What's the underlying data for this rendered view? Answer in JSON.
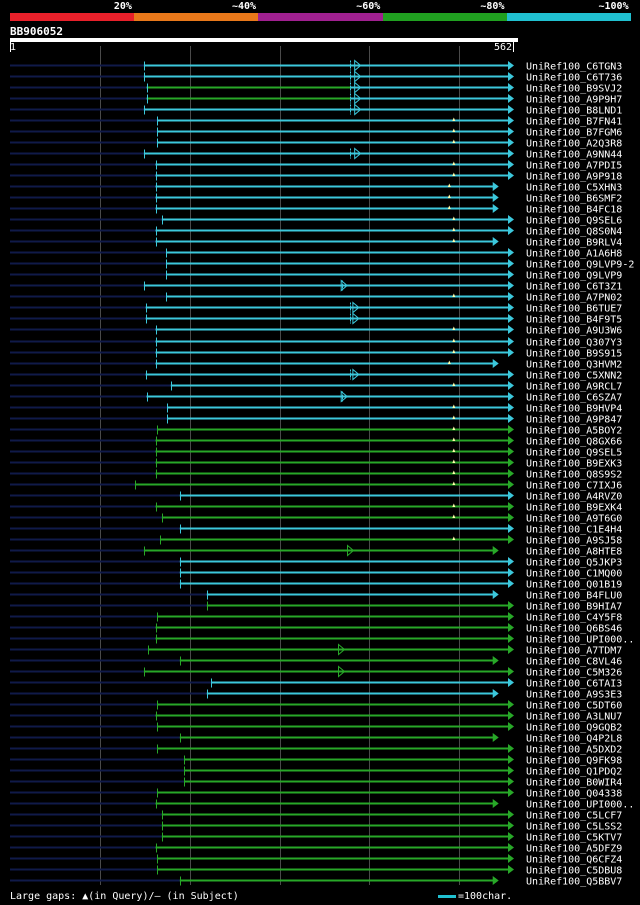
{
  "identity_legend": [
    {
      "label": "20%",
      "color": "#e8202a"
    },
    {
      "label": "~40%",
      "color": "#e8781a"
    },
    {
      "label": "~60%",
      "color": "#a02090"
    },
    {
      "label": "~80%",
      "color": "#20a020"
    },
    {
      "label": "~100%",
      "color": "#20c0d0"
    }
  ],
  "query": {
    "id": "BB906052",
    "start": "1",
    "end": "562"
  },
  "colors": {
    "cyan": "#3cc8dc",
    "green": "#28a828",
    "navy": "#101a4a",
    "grid": "#4a4a4a",
    "gap": "#ffffaa"
  },
  "hits": [
    {
      "label": "UniRef100_C6TGN3",
      "start": 150,
      "end": 562,
      "color": "cyan",
      "marks": [
        {
          "t": "b",
          "p": 380
        },
        {
          "t": "t",
          "p": 388
        }
      ]
    },
    {
      "label": "UniRef100_C6T736",
      "start": 150,
      "end": 562,
      "color": "cyan",
      "marks": [
        {
          "t": "b",
          "p": 380
        },
        {
          "t": "t",
          "p": 388
        }
      ]
    },
    {
      "label": "UniRef100_B9SVJ2",
      "start": 153,
      "end": 562,
      "color": "cyan",
      "gstart": 153,
      "gend": 380,
      "marks": [
        {
          "t": "b",
          "p": 380
        },
        {
          "t": "t",
          "p": 388
        }
      ]
    },
    {
      "label": "UniRef100_A9P9H7",
      "start": 153,
      "end": 562,
      "color": "cyan",
      "gstart": 153,
      "gend": 380,
      "marks": [
        {
          "t": "b",
          "p": 380
        },
        {
          "t": "t",
          "p": 388
        }
      ]
    },
    {
      "label": "UniRef100_B8LND1",
      "start": 150,
      "end": 562,
      "color": "cyan",
      "marks": [
        {
          "t": "b",
          "p": 380
        },
        {
          "t": "t",
          "p": 388
        }
      ]
    },
    {
      "label": "UniRef100_B7FN41",
      "start": 165,
      "end": 562,
      "color": "cyan",
      "marks": [
        {
          "t": "a",
          "p": 495
        }
      ]
    },
    {
      "label": "UniRef100_B7FGM6",
      "start": 165,
      "end": 562,
      "color": "cyan",
      "marks": [
        {
          "t": "a",
          "p": 495
        }
      ]
    },
    {
      "label": "UniRef100_A2Q3R8",
      "start": 165,
      "end": 562,
      "color": "cyan",
      "marks": [
        {
          "t": "a",
          "p": 495
        }
      ]
    },
    {
      "label": "UniRef100_A9NN44",
      "start": 150,
      "end": 562,
      "color": "cyan",
      "marks": [
        {
          "t": "b",
          "p": 380
        },
        {
          "t": "t",
          "p": 388
        }
      ]
    },
    {
      "label": "UniRef100_A7PDI5",
      "start": 163,
      "end": 562,
      "color": "cyan",
      "marks": [
        {
          "t": "a",
          "p": 495
        }
      ]
    },
    {
      "label": "UniRef100_A9P918",
      "start": 163,
      "end": 562,
      "color": "cyan",
      "marks": [
        {
          "t": "a",
          "p": 495
        }
      ]
    },
    {
      "label": "UniRef100_C5XHN3",
      "start": 163,
      "end": 545,
      "color": "cyan",
      "marks": [
        {
          "t": "a",
          "p": 490
        }
      ]
    },
    {
      "label": "UniRef100_B6SMF2",
      "start": 163,
      "end": 545,
      "color": "cyan",
      "marks": [
        {
          "t": "a",
          "p": 490
        }
      ]
    },
    {
      "label": "UniRef100_B4FC18",
      "start": 163,
      "end": 545,
      "color": "cyan",
      "marks": [
        {
          "t": "a",
          "p": 490
        }
      ]
    },
    {
      "label": "UniRef100_Q9SEL6",
      "start": 170,
      "end": 562,
      "color": "cyan",
      "marks": [
        {
          "t": "a",
          "p": 495
        }
      ]
    },
    {
      "label": "UniRef100_Q8S0N4",
      "start": 163,
      "end": 562,
      "color": "cyan",
      "marks": [
        {
          "t": "a",
          "p": 495
        }
      ]
    },
    {
      "label": "UniRef100_B9RLV4",
      "start": 163,
      "end": 545,
      "color": "cyan",
      "marks": [
        {
          "t": "a",
          "p": 495
        }
      ]
    },
    {
      "label": "UniRef100_A1A6H8",
      "start": 175,
      "end": 562,
      "color": "cyan",
      "marks": []
    },
    {
      "label": "UniRef100_Q9LVP9-2",
      "start": 175,
      "end": 562,
      "color": "cyan",
      "marks": []
    },
    {
      "label": "UniRef100_Q9LVP9",
      "start": 175,
      "end": 562,
      "color": "cyan",
      "marks": []
    },
    {
      "label": "UniRef100_C6T3Z1",
      "start": 150,
      "end": 562,
      "color": "cyan",
      "marks": [
        {
          "t": "b",
          "p": 370
        },
        {
          "t": "t",
          "p": 373
        }
      ]
    },
    {
      "label": "UniRef100_A7PN02",
      "start": 175,
      "end": 562,
      "color": "cyan",
      "marks": [
        {
          "t": "a",
          "p": 495
        }
      ]
    },
    {
      "label": "UniRef100_B6TUE7",
      "start": 152,
      "end": 562,
      "color": "cyan",
      "marks": [
        {
          "t": "b",
          "p": 380
        },
        {
          "t": "t",
          "p": 386
        }
      ]
    },
    {
      "label": "UniRef100_B4F9T5",
      "start": 152,
      "end": 562,
      "color": "cyan",
      "marks": [
        {
          "t": "b",
          "p": 380
        },
        {
          "t": "t",
          "p": 386
        }
      ]
    },
    {
      "label": "UniRef100_A9U3W6",
      "start": 163,
      "end": 562,
      "color": "cyan",
      "marks": [
        {
          "t": "a",
          "p": 495
        }
      ]
    },
    {
      "label": "UniRef100_Q307Y3",
      "start": 163,
      "end": 562,
      "color": "cyan",
      "marks": [
        {
          "t": "a",
          "p": 495
        }
      ]
    },
    {
      "label": "UniRef100_B9S915",
      "start": 163,
      "end": 562,
      "color": "cyan",
      "marks": [
        {
          "t": "a",
          "p": 495
        }
      ]
    },
    {
      "label": "UniRef100_Q3HVM2",
      "start": 163,
      "end": 545,
      "color": "cyan",
      "marks": [
        {
          "t": "a",
          "p": 490
        }
      ]
    },
    {
      "label": "UniRef100_C5XNN2",
      "start": 152,
      "end": 562,
      "color": "cyan",
      "marks": [
        {
          "t": "b",
          "p": 380
        },
        {
          "t": "t",
          "p": 386
        }
      ]
    },
    {
      "label": "UniRef100_A9RCL7",
      "start": 180,
      "end": 562,
      "color": "cyan",
      "marks": [
        {
          "t": "a",
          "p": 495
        }
      ]
    },
    {
      "label": "UniRef100_C6SZA7",
      "start": 153,
      "end": 562,
      "color": "cyan",
      "marks": [
        {
          "t": "b",
          "p": 370
        },
        {
          "t": "t",
          "p": 373
        }
      ]
    },
    {
      "label": "UniRef100_B9HVP4",
      "start": 176,
      "end": 562,
      "color": "cyan",
      "marks": [
        {
          "t": "a",
          "p": 495
        }
      ]
    },
    {
      "label": "UniRef100_A9P847",
      "start": 176,
      "end": 562,
      "color": "cyan",
      "marks": [
        {
          "t": "a",
          "p": 495
        }
      ]
    },
    {
      "label": "UniRef100_A5BOY2",
      "start": 165,
      "end": 562,
      "color": "green",
      "marks": [
        {
          "t": "a",
          "p": 495
        }
      ]
    },
    {
      "label": "UniRef100_Q8GX66",
      "start": 163,
      "end": 562,
      "color": "green",
      "marks": [
        {
          "t": "a",
          "p": 495
        }
      ]
    },
    {
      "label": "UniRef100_Q9SEL5",
      "start": 163,
      "end": 562,
      "color": "green",
      "marks": [
        {
          "t": "a",
          "p": 495
        }
      ]
    },
    {
      "label": "UniRef100_B9EXK3",
      "start": 163,
      "end": 562,
      "color": "green",
      "marks": [
        {
          "t": "a",
          "p": 495
        }
      ]
    },
    {
      "label": "UniRef100_Q8S9S2",
      "start": 163,
      "end": 562,
      "color": "green",
      "marks": [
        {
          "t": "a",
          "p": 495
        }
      ]
    },
    {
      "label": "UniRef100_C7IXJ6",
      "start": 140,
      "end": 562,
      "color": "green",
      "marks": [
        {
          "t": "a",
          "p": 495
        }
      ]
    },
    {
      "label": "UniRef100_A4RVZ0",
      "start": 190,
      "end": 562,
      "color": "cyan",
      "marks": []
    },
    {
      "label": "UniRef100_B9EXK4",
      "start": 163,
      "end": 562,
      "color": "green",
      "marks": [
        {
          "t": "a",
          "p": 495
        }
      ]
    },
    {
      "label": "UniRef100_A9T6G0",
      "start": 170,
      "end": 562,
      "color": "green",
      "marks": [
        {
          "t": "a",
          "p": 495
        }
      ]
    },
    {
      "label": "UniRef100_C1E4H4",
      "start": 190,
      "end": 562,
      "color": "cyan",
      "marks": []
    },
    {
      "label": "UniRef100_A9SJ58",
      "start": 168,
      "end": 562,
      "color": "green",
      "marks": [
        {
          "t": "a",
          "p": 495
        }
      ]
    },
    {
      "label": "UniRef100_A8HTE8",
      "start": 150,
      "end": 545,
      "color": "green",
      "marks": [
        {
          "t": "t",
          "p": 380
        }
      ]
    },
    {
      "label": "UniRef100_Q5JKP3",
      "start": 190,
      "end": 562,
      "color": "cyan",
      "marks": []
    },
    {
      "label": "UniRef100_C1MQ00",
      "start": 190,
      "end": 562,
      "color": "cyan",
      "marks": []
    },
    {
      "label": "UniRef100_Q01B19",
      "start": 190,
      "end": 562,
      "color": "cyan",
      "marks": []
    },
    {
      "label": "UniRef100_B4FLU0",
      "start": 220,
      "end": 545,
      "color": "cyan",
      "marks": []
    },
    {
      "label": "UniRef100_B9HIA7",
      "start": 220,
      "end": 562,
      "color": "green",
      "marks": []
    },
    {
      "label": "UniRef100_C4Y5F8",
      "start": 165,
      "end": 562,
      "color": "green",
      "marks": []
    },
    {
      "label": "UniRef100_Q6BS46",
      "start": 163,
      "end": 562,
      "color": "green",
      "marks": []
    },
    {
      "label": "UniRef100_UPI000..",
      "start": 163,
      "end": 562,
      "color": "green",
      "marks": []
    },
    {
      "label": "UniRef100_A7TDM7",
      "start": 155,
      "end": 562,
      "color": "green",
      "marks": [
        {
          "t": "t",
          "p": 370
        }
      ]
    },
    {
      "label": "UniRef100_C8VL46",
      "start": 190,
      "end": 545,
      "color": "green",
      "marks": []
    },
    {
      "label": "UniRef100_C5M326",
      "start": 150,
      "end": 562,
      "color": "green",
      "marks": [
        {
          "t": "t",
          "p": 370
        }
      ]
    },
    {
      "label": "UniRef100_C6TAI3",
      "start": 225,
      "end": 562,
      "color": "cyan",
      "marks": []
    },
    {
      "label": "UniRef100_A9S3E3",
      "start": 220,
      "end": 545,
      "color": "cyan",
      "marks": []
    },
    {
      "label": "UniRef100_C5DT60",
      "start": 165,
      "end": 562,
      "color": "green",
      "marks": []
    },
    {
      "label": "UniRef100_A3LNU7",
      "start": 163,
      "end": 562,
      "color": "green",
      "marks": []
    },
    {
      "label": "UniRef100_Q9GQB2",
      "start": 165,
      "end": 562,
      "color": "green",
      "marks": []
    },
    {
      "label": "UniRef100_Q4P2L8",
      "start": 190,
      "end": 545,
      "color": "green",
      "marks": []
    },
    {
      "label": "UniRef100_A5DXD2",
      "start": 165,
      "end": 562,
      "color": "green",
      "marks": []
    },
    {
      "label": "UniRef100_Q9FK98",
      "start": 195,
      "end": 562,
      "color": "green",
      "marks": []
    },
    {
      "label": "UniRef100_Q1PDQ2",
      "start": 195,
      "end": 562,
      "color": "green",
      "marks": []
    },
    {
      "label": "UniRef100_B0WIR4",
      "start": 195,
      "end": 562,
      "color": "green",
      "marks": []
    },
    {
      "label": "UniRef100_Q04338",
      "start": 165,
      "end": 562,
      "color": "green",
      "marks": []
    },
    {
      "label": "UniRef100_UPI000..",
      "start": 163,
      "end": 545,
      "color": "green",
      "marks": []
    },
    {
      "label": "UniRef100_C5LCF7",
      "start": 170,
      "end": 562,
      "color": "green",
      "marks": []
    },
    {
      "label": "UniRef100_C5LSS2",
      "start": 170,
      "end": 562,
      "color": "green",
      "marks": []
    },
    {
      "label": "UniRef100_C5KTV7",
      "start": 170,
      "end": 562,
      "color": "green",
      "marks": []
    },
    {
      "label": "UniRef100_A5DFZ9",
      "start": 163,
      "end": 562,
      "color": "green",
      "marks": []
    },
    {
      "label": "UniRef100_Q6CFZ4",
      "start": 165,
      "end": 562,
      "color": "green",
      "marks": []
    },
    {
      "label": "UniRef100_C5DBU8",
      "start": 165,
      "end": 562,
      "color": "green",
      "marks": []
    },
    {
      "label": "UniRef100_Q5BBV7",
      "start": 190,
      "end": 545,
      "color": "green",
      "marks": []
    }
  ],
  "footer": {
    "gaps_text": "Large gaps: ▲(in Query)/– (in Subject)",
    "scale_text": "=100char."
  }
}
